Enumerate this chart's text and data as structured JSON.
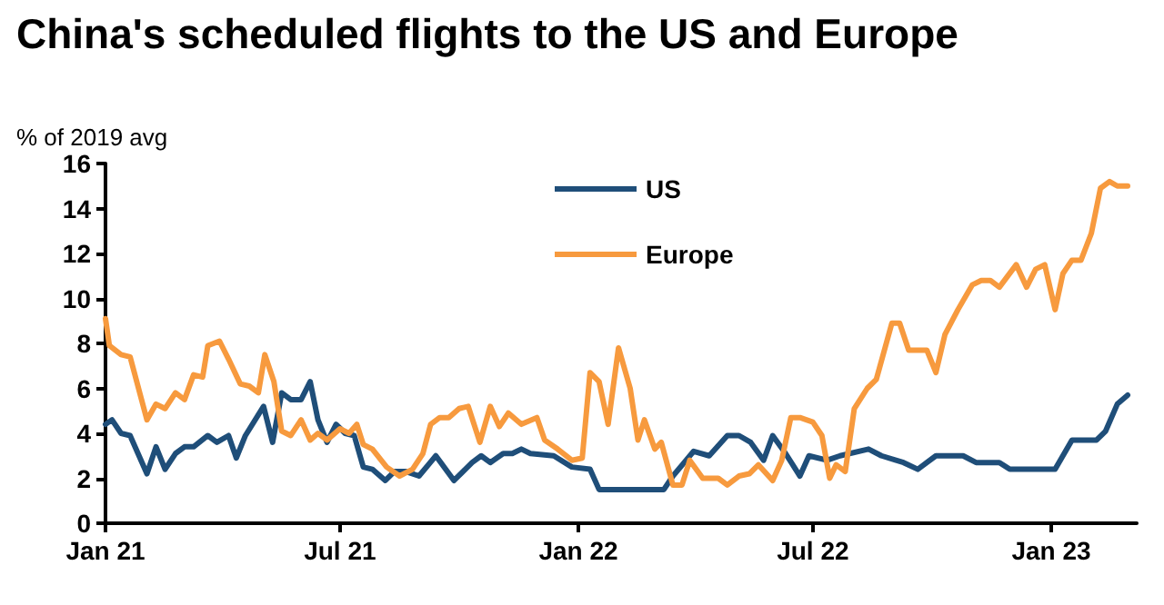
{
  "chart_data": {
    "type": "line",
    "title": "China's scheduled flights to the US and Europe",
    "ylabel": "% of 2019 avg",
    "xlim": [
      "2021-01-01",
      "2023-03-08"
    ],
    "xticks": [
      {
        "value": "2021-01-01",
        "label": "Jan 21"
      },
      {
        "value": "2021-07-01",
        "label": "Jul 21"
      },
      {
        "value": "2022-01-01",
        "label": "Jan 22"
      },
      {
        "value": "2022-07-01",
        "label": "Jul 22"
      },
      {
        "value": "2023-01-01",
        "label": "Jan 23"
      }
    ],
    "ylim": [
      0,
      16
    ],
    "yticks": [
      0,
      2,
      4,
      6,
      8,
      10,
      12,
      14,
      16
    ],
    "grid": false,
    "legend": "top",
    "marker": "none",
    "line_style": "solid",
    "series": [
      {
        "name": "US",
        "color": "#1f4e79",
        "x": [
          "2021-01-01",
          "2021-01-06",
          "2021-01-13",
          "2021-01-20",
          "2021-02-02",
          "2021-02-09",
          "2021-02-16",
          "2021-02-24",
          "2021-03-03",
          "2021-03-10",
          "2021-03-21",
          "2021-03-28",
          "2021-04-06",
          "2021-04-12",
          "2021-04-19",
          "2021-05-03",
          "2021-05-10",
          "2021-05-17",
          "2021-05-24",
          "2021-06-01",
          "2021-06-08",
          "2021-06-14",
          "2021-06-21",
          "2021-06-28",
          "2021-07-05",
          "2021-07-12",
          "2021-07-19",
          "2021-07-26",
          "2021-08-05",
          "2021-08-12",
          "2021-08-21",
          "2021-08-31",
          "2021-09-13",
          "2021-09-27",
          "2021-10-11",
          "2021-10-18",
          "2021-10-25",
          "2021-11-04",
          "2021-11-11",
          "2021-11-18",
          "2021-11-25",
          "2021-12-13",
          "2021-12-27",
          "2022-01-10",
          "2022-01-17",
          "2022-02-01",
          "2022-03-08",
          "2022-03-15",
          "2022-03-31",
          "2022-04-12",
          "2022-04-26",
          "2022-05-05",
          "2022-05-14",
          "2022-05-24",
          "2022-05-31",
          "2022-06-10",
          "2022-06-21",
          "2022-06-28",
          "2022-07-12",
          "2022-07-22",
          "2022-08-13",
          "2022-08-23",
          "2022-09-09",
          "2022-09-20",
          "2022-10-04",
          "2022-10-25",
          "2022-11-04",
          "2022-11-22",
          "2022-11-30",
          "2023-01-04",
          "2023-01-17",
          "2023-02-05",
          "2023-02-12",
          "2023-02-21",
          "2023-03-01"
        ],
        "values": [
          4.4,
          4.6,
          4.0,
          3.9,
          2.2,
          3.4,
          2.4,
          3.1,
          3.4,
          3.4,
          3.9,
          3.6,
          3.9,
          2.9,
          3.9,
          5.2,
          3.6,
          5.8,
          5.5,
          5.5,
          6.3,
          4.6,
          3.6,
          4.4,
          4.0,
          3.9,
          2.5,
          2.4,
          1.9,
          2.3,
          2.3,
          2.1,
          3.0,
          1.9,
          2.7,
          3.0,
          2.7,
          3.1,
          3.1,
          3.3,
          3.1,
          3.0,
          2.5,
          2.4,
          1.5,
          1.5,
          1.5,
          2.1,
          3.2,
          3.0,
          3.9,
          3.9,
          3.6,
          2.8,
          3.9,
          3.1,
          2.1,
          3.0,
          2.8,
          3.0,
          3.3,
          3.0,
          2.7,
          2.4,
          3.0,
          3.0,
          2.7,
          2.7,
          2.4,
          2.4,
          3.7,
          3.7,
          4.1,
          5.3,
          5.7
        ]
      },
      {
        "name": "Europe",
        "color": "#f79a3e",
        "x": [
          "2021-01-01",
          "2021-01-04",
          "2021-01-13",
          "2021-01-20",
          "2021-02-02",
          "2021-02-09",
          "2021-02-16",
          "2021-02-24",
          "2021-03-03",
          "2021-03-10",
          "2021-03-17",
          "2021-03-21",
          "2021-03-30",
          "2021-04-06",
          "2021-04-15",
          "2021-04-22",
          "2021-04-29",
          "2021-05-04",
          "2021-05-11",
          "2021-05-17",
          "2021-05-24",
          "2021-06-01",
          "2021-06-08",
          "2021-06-14",
          "2021-06-21",
          "2021-07-01",
          "2021-07-08",
          "2021-07-14",
          "2021-07-19",
          "2021-07-26",
          "2021-08-06",
          "2021-08-16",
          "2021-08-26",
          "2021-09-03",
          "2021-09-09",
          "2021-09-16",
          "2021-09-23",
          "2021-10-01",
          "2021-10-08",
          "2021-10-17",
          "2021-10-25",
          "2021-11-01",
          "2021-11-08",
          "2021-11-18",
          "2021-11-30",
          "2021-12-06",
          "2021-12-16",
          "2021-12-27",
          "2022-01-04",
          "2022-01-10",
          "2022-01-17",
          "2022-01-24",
          "2022-02-01",
          "2022-02-10",
          "2022-02-16",
          "2022-02-21",
          "2022-03-01",
          "2022-03-06",
          "2022-03-15",
          "2022-03-22",
          "2022-03-28",
          "2022-04-07",
          "2022-04-19",
          "2022-04-26",
          "2022-05-05",
          "2022-05-13",
          "2022-05-20",
          "2022-05-31",
          "2022-06-07",
          "2022-06-14",
          "2022-06-21",
          "2022-07-01",
          "2022-07-08",
          "2022-07-14",
          "2022-07-19",
          "2022-07-26",
          "2022-08-02",
          "2022-08-12",
          "2022-08-19",
          "2022-08-31",
          "2022-09-06",
          "2022-09-13",
          "2022-09-27",
          "2022-10-04",
          "2022-10-11",
          "2022-10-21",
          "2022-11-01",
          "2022-11-08",
          "2022-11-15",
          "2022-11-22",
          "2022-12-05",
          "2022-12-13",
          "2022-12-20",
          "2022-12-27",
          "2023-01-04",
          "2023-01-10",
          "2023-01-17",
          "2023-01-24",
          "2023-02-01",
          "2023-02-08",
          "2023-02-15",
          "2023-02-21",
          "2023-03-01"
        ],
        "values": [
          9.1,
          7.9,
          7.5,
          7.4,
          4.6,
          5.3,
          5.1,
          5.8,
          5.5,
          6.6,
          6.5,
          7.9,
          8.1,
          7.3,
          6.2,
          6.1,
          5.8,
          7.5,
          6.3,
          4.1,
          3.9,
          4.6,
          3.7,
          4.0,
          3.7,
          4.2,
          4.0,
          4.4,
          3.5,
          3.3,
          2.5,
          2.1,
          2.4,
          3.1,
          4.4,
          4.7,
          4.7,
          5.1,
          5.2,
          3.6,
          5.2,
          4.3,
          4.9,
          4.4,
          4.7,
          3.7,
          3.3,
          2.8,
          2.9,
          6.7,
          6.3,
          4.4,
          7.8,
          6.0,
          3.7,
          4.6,
          3.3,
          3.6,
          1.7,
          1.7,
          2.8,
          2.0,
          2.0,
          1.7,
          2.1,
          2.2,
          2.6,
          1.9,
          2.8,
          4.7,
          4.7,
          4.5,
          3.9,
          2.0,
          2.6,
          2.3,
          5.1,
          6.0,
          6.4,
          8.9,
          8.9,
          7.7,
          7.7,
          6.7,
          8.4,
          9.5,
          10.6,
          10.8,
          10.8,
          10.5,
          11.5,
          10.5,
          11.3,
          11.5,
          9.5,
          11.1,
          11.7,
          11.7,
          12.9,
          14.9,
          15.2,
          15.0,
          15.0
        ]
      }
    ]
  }
}
